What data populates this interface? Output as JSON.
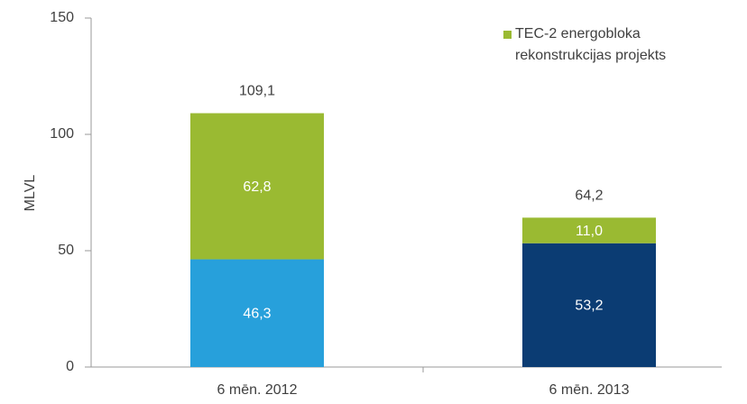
{
  "chart_data": {
    "type": "stacked_bar",
    "y_label": "MLVL",
    "categories": [
      "6 mēn. 2012",
      "6 mēn. 2013"
    ],
    "series": [
      {
        "colors": [
          "#27a0db",
          "#0b3c73"
        ],
        "values": [
          46.3,
          53.2
        ],
        "value_labels": [
          "46,3",
          "53,2"
        ]
      },
      {
        "name": "TEC-2 energobloka rekonstrukcijas projekts",
        "color": "#9aba32",
        "values": [
          62.8,
          11.0
        ],
        "value_labels": [
          "62,8",
          "11,0"
        ]
      }
    ],
    "totals": [
      109.1,
      64.2
    ],
    "total_labels": [
      "109,1",
      "64,2"
    ],
    "ylim": [
      0,
      150
    ],
    "yticks": [
      0,
      50,
      100,
      150
    ],
    "grid": false
  }
}
